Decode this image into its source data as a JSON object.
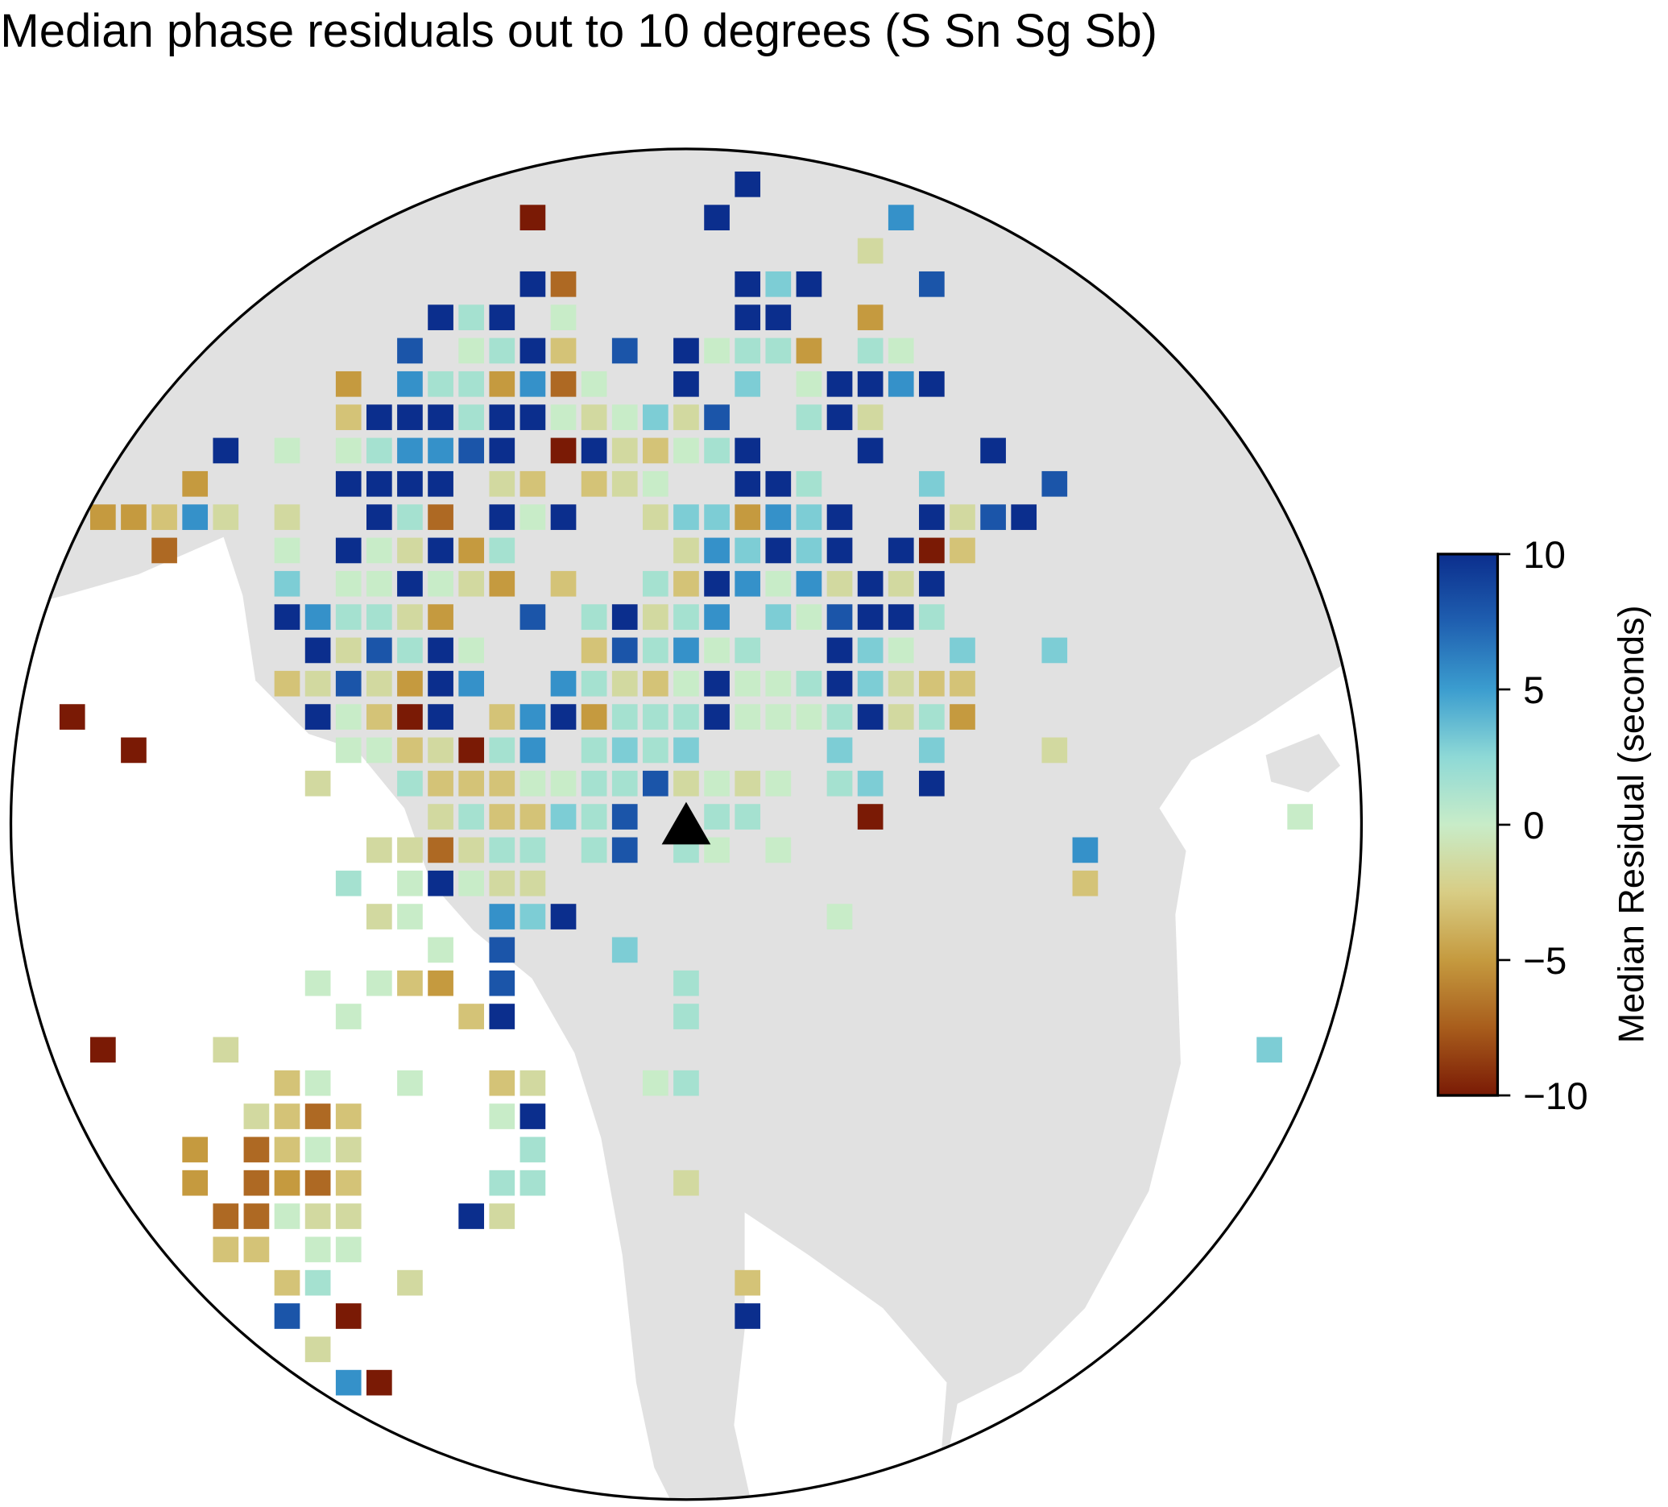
{
  "chart_data": {
    "type": "grid_map",
    "title": "Median phase residuals out to 10 degrees (S Sn Sg Sb)",
    "xlim": [
      -11,
      11
    ],
    "ylim": [
      -10,
      10
    ],
    "clim": [
      -10,
      10
    ],
    "colormap": [
      "#7a1a05",
      "#a85d1c",
      "#c59a3f",
      "#d8cd85",
      "#c8ecc8",
      "#8ed9d6",
      "#3b9dcf",
      "#1f5fb0",
      "#0b2e8d"
    ],
    "colorbar_label": "Median Residual (seconds)",
    "colorbar_ticks": [
      {
        "value": -10,
        "label": "−10"
      },
      {
        "value": -5,
        "label": "−5"
      },
      0,
      5,
      10
    ],
    "rows": [
      {
        "y": 9.5,
        "x": [
          1
        ],
        "values": [
          10
        ]
      },
      {
        "y": 9,
        "x": [
          -2.5,
          0.5,
          3.5
        ],
        "values": [
          -10,
          10,
          5.5
        ]
      },
      {
        "y": 8.5,
        "x": [
          3
        ],
        "values": [
          -1.5
        ]
      },
      {
        "y": 8,
        "x": [
          -2.5,
          -2,
          1,
          1.5,
          2,
          4
        ],
        "values": [
          10,
          -7,
          10,
          3,
          10,
          8
        ]
      },
      {
        "y": 7.5,
        "x": [
          -4,
          -3.5,
          -3,
          -2,
          1,
          1.5,
          3
        ],
        "values": [
          10,
          1.5,
          10,
          0,
          10,
          10,
          -5
        ]
      },
      {
        "y": 7,
        "x": [
          -4.5,
          -3.5,
          -3,
          -2.5,
          -2,
          -1,
          0,
          0.5,
          1,
          1.5,
          2,
          3,
          3.5
        ],
        "values": [
          8,
          0,
          1.5,
          10,
          -3,
          8,
          10,
          0,
          1.5,
          1.5,
          -5,
          1.5,
          0
        ]
      },
      {
        "y": 6.5,
        "x": [
          -5.5,
          -4.5,
          -4,
          -3.5,
          -3,
          -2.5,
          -2,
          -1.5,
          0,
          1,
          2,
          2.5,
          3,
          3.5,
          4
        ],
        "values": [
          -5,
          5.5,
          1.5,
          1.5,
          -5,
          5.5,
          -7,
          0,
          10,
          3,
          0,
          10,
          10,
          5.5,
          10
        ]
      },
      {
        "y": 6,
        "x": [
          -5.5,
          -5,
          -4.5,
          -4,
          -3.5,
          -3,
          -2.5,
          -2,
          -1.5,
          -1,
          -0.5,
          0,
          0.5,
          2,
          2.5,
          3
        ],
        "values": [
          -3,
          10,
          10,
          10,
          1.5,
          10,
          10,
          0,
          -1.5,
          0,
          3,
          -1.5,
          8,
          1.5,
          10,
          -1.5
        ]
      },
      {
        "y": 5.5,
        "x": [
          -7.5,
          -6.5,
          -5.5,
          -5,
          -4.5,
          -4,
          -3.5,
          -3,
          -2,
          -1.5,
          -1,
          -0.5,
          0,
          0.5,
          1,
          3,
          5
        ],
        "values": [
          10,
          0,
          0,
          1.5,
          5.5,
          5.5,
          8,
          10,
          -10,
          10,
          -1.5,
          -3,
          0,
          1.5,
          10,
          10,
          10
        ]
      },
      {
        "y": 5,
        "x": [
          -8,
          -5.5,
          -5,
          -4.5,
          -4,
          -3,
          -2.5,
          -1.5,
          -1,
          -0.5,
          1,
          1.5,
          2,
          4,
          6
        ],
        "values": [
          -5,
          10,
          10,
          10,
          10,
          -1.5,
          -3,
          -3,
          -1.5,
          0,
          10,
          10,
          1.5,
          3,
          8
        ]
      },
      {
        "y": 4.5,
        "x": [
          -9.5,
          -9,
          -8.5,
          -8,
          -7.5,
          -6.5,
          -5,
          -4.5,
          -4,
          -3,
          -2.5,
          -2,
          -0.5,
          0,
          0.5,
          1,
          1.5,
          2,
          2.5,
          4,
          4.5,
          5,
          5.5
        ],
        "values": [
          -5,
          -5,
          -3,
          5.5,
          -1.5,
          -1.5,
          10,
          1.5,
          -7,
          10,
          0,
          10,
          -1.5,
          3,
          3,
          -5,
          5.5,
          3,
          10,
          10,
          -1.5,
          8,
          10
        ]
      },
      {
        "y": 4,
        "x": [
          -8.5,
          -6.5,
          -5.5,
          -5,
          -4.5,
          -4,
          -3.5,
          -3,
          0,
          0.5,
          1,
          1.5,
          2,
          2.5,
          3.5,
          4,
          4.5
        ],
        "values": [
          -7,
          0,
          10,
          0,
          -1.5,
          10,
          -5,
          1.5,
          -1.5,
          5.5,
          3,
          10,
          3,
          10,
          10,
          -10,
          -3
        ]
      },
      {
        "y": 3.5,
        "x": [
          -6.5,
          -5.5,
          -5,
          -4.5,
          -4,
          -3.5,
          -3,
          -2,
          -0.5,
          0,
          0.5,
          1,
          1.5,
          2,
          2.5,
          3,
          3.5,
          4
        ],
        "values": [
          3,
          0,
          0,
          10,
          0,
          -1.5,
          -5,
          -3,
          1.5,
          -3,
          10,
          5.5,
          0,
          5.5,
          -1.5,
          10,
          -1.5,
          10
        ]
      },
      {
        "y": 3,
        "x": [
          -6.5,
          -6,
          -5.5,
          -5,
          -4.5,
          -4,
          -2.5,
          -1.5,
          -1,
          -0.5,
          0,
          0.5,
          1.5,
          2,
          2.5,
          3,
          3.5,
          4
        ],
        "values": [
          10,
          5.5,
          1.5,
          1.5,
          -1.5,
          -5,
          8,
          1.5,
          10,
          -1.5,
          1.5,
          5.5,
          3,
          0,
          8,
          10,
          10,
          1.5
        ]
      },
      {
        "y": 2.5,
        "x": [
          -6,
          -5.5,
          -5,
          -4.5,
          -4,
          -3.5,
          -1.5,
          -1,
          -0.5,
          0,
          0.5,
          1,
          2.5,
          3,
          3.5,
          4.5,
          6
        ],
        "values": [
          10,
          -1.5,
          8,
          1.5,
          10,
          0,
          -3,
          8,
          1.5,
          5.5,
          0,
          1.5,
          10,
          3,
          0,
          3,
          3
        ]
      },
      {
        "y": 2,
        "x": [
          -6.5,
          -6,
          -5.5,
          -5,
          -4.5,
          -4,
          -3.5,
          -2,
          -1.5,
          -1,
          -0.5,
          0,
          0.5,
          1,
          1.5,
          2,
          2.5,
          3,
          3.5,
          4,
          4.5
        ],
        "values": [
          -3,
          -1.5,
          8,
          -1.5,
          -5,
          10,
          5.5,
          5.5,
          1.5,
          -1.5,
          -3,
          0,
          10,
          0,
          0,
          1.5,
          10,
          3,
          -1.5,
          -3,
          -3
        ]
      },
      {
        "y": 1.5,
        "x": [
          -10,
          -6,
          -5.5,
          -5,
          -4.5,
          -4,
          -3,
          -2.5,
          -2,
          -1.5,
          -1,
          -0.5,
          0,
          0.5,
          1,
          1.5,
          2,
          2.5,
          3,
          3.5,
          4,
          4.5
        ],
        "values": [
          -10,
          10,
          0,
          -3,
          -10,
          10,
          -3,
          5.5,
          10,
          -5,
          1.5,
          1.5,
          1.5,
          10,
          0,
          0,
          0,
          1.5,
          10,
          -1.5,
          1.5,
          -5
        ]
      },
      {
        "y": 1,
        "x": [
          -9,
          -5.5,
          -5,
          -4.5,
          -4,
          -3.5,
          -3,
          -2.5,
          -1.5,
          -1,
          -0.5,
          0,
          2.5,
          4,
          6
        ],
        "values": [
          -10,
          0,
          0,
          -3,
          -1.5,
          -10,
          1.5,
          5.5,
          1.5,
          3,
          1.5,
          3,
          3,
          3,
          -1.5
        ]
      },
      {
        "y": 0.5,
        "x": [
          -6,
          -4.5,
          -4,
          -3.5,
          -3,
          -2.5,
          -2,
          -1.5,
          -1,
          -0.5,
          0,
          0.5,
          1,
          1.5,
          2.5,
          3,
          4
        ],
        "values": [
          -1.5,
          1.5,
          -3,
          -3,
          -3,
          0,
          0,
          1.5,
          1.5,
          8,
          -1.5,
          0,
          -1.5,
          0,
          1.5,
          3,
          10
        ]
      },
      {
        "y": 0,
        "x": [
          -4,
          -3.5,
          -3,
          -2.5,
          -2,
          -1.5,
          -1,
          0.5,
          1,
          3,
          10
        ],
        "values": [
          -1.5,
          1.5,
          -3,
          -3,
          3,
          1.5,
          8,
          1.5,
          1.5,
          -10,
          0
        ]
      },
      {
        "y": -0.5,
        "x": [
          -5,
          -4.5,
          -4,
          -3.5,
          -3,
          -2.5,
          -1.5,
          -1,
          0,
          0.5,
          1.5,
          6.5
        ],
        "values": [
          -1.5,
          -1.5,
          -7,
          -1.5,
          1.5,
          1.5,
          1.5,
          8,
          1.5,
          0,
          0,
          5.5
        ]
      },
      {
        "y": -1,
        "x": [
          -5.5,
          -4.5,
          -4,
          -3.5,
          -3,
          -2.5,
          6.5
        ],
        "values": [
          1.5,
          0,
          10,
          0,
          -1.5,
          -1.5,
          -3
        ]
      },
      {
        "y": -1.5,
        "x": [
          -5,
          -4.5,
          -3,
          -2.5,
          -2,
          2.5
        ],
        "values": [
          -1.5,
          0,
          5.5,
          3,
          10,
          0
        ]
      },
      {
        "y": -2,
        "x": [
          -4,
          -3,
          -1
        ],
        "values": [
          0,
          8,
          3
        ]
      },
      {
        "y": -2.5,
        "x": [
          -6,
          -5,
          -4.5,
          -4,
          -3,
          0
        ],
        "values": [
          0,
          0,
          -3,
          -5,
          8,
          1.5
        ]
      },
      {
        "y": -3,
        "x": [
          -5.5,
          -3.5,
          -3,
          0
        ],
        "values": [
          0,
          -3,
          10,
          1.5
        ]
      },
      {
        "y": -3.5,
        "x": [
          -9.5,
          -7.5,
          9.5
        ],
        "values": [
          -10,
          -1.5,
          3
        ]
      },
      {
        "y": -4,
        "x": [
          -6.5,
          -6,
          -4.5,
          -3,
          -2.5,
          -0.5,
          0
        ],
        "values": [
          -3,
          0,
          0,
          -3,
          -1.5,
          0,
          1.5
        ]
      },
      {
        "y": -4.5,
        "x": [
          -7,
          -6.5,
          -6,
          -5.5,
          -3,
          -2.5
        ],
        "values": [
          -1.5,
          -3,
          -7,
          -3,
          0,
          10
        ]
      },
      {
        "y": -5,
        "x": [
          -8,
          -7,
          -6.5,
          -6,
          -5.5,
          -2.5
        ],
        "values": [
          -5,
          -7,
          -3,
          0,
          -1.5,
          1.5
        ]
      },
      {
        "y": -5.5,
        "x": [
          -8,
          -7,
          -6.5,
          -6,
          -5.5,
          -3,
          -2.5,
          0
        ],
        "values": [
          -5,
          -7,
          -5,
          -7,
          -3,
          1.5,
          1.5,
          -1.5
        ]
      },
      {
        "y": -6,
        "x": [
          -7.5,
          -7,
          -6.5,
          -6,
          -5.5,
          -3.5,
          -3
        ],
        "values": [
          -7,
          -7,
          0,
          -1.5,
          -1.5,
          10,
          -1.5
        ]
      },
      {
        "y": -6.5,
        "x": [
          -7.5,
          -7,
          -6,
          -5.5
        ],
        "values": [
          -3,
          -3,
          0,
          0
        ]
      },
      {
        "y": -7,
        "x": [
          -6.5,
          -6,
          -4.5,
          1
        ],
        "values": [
          -3,
          1.5,
          -1.5,
          -3
        ]
      },
      {
        "y": -7.5,
        "x": [
          -6.5,
          -5.5,
          1
        ],
        "values": [
          8,
          -10,
          10
        ]
      },
      {
        "y": -8,
        "x": [
          -6
        ],
        "values": [
          -1.5
        ]
      },
      {
        "y": -8.5,
        "x": [
          -5.5,
          -5
        ],
        "values": [
          5.5,
          -10
        ]
      }
    ]
  }
}
